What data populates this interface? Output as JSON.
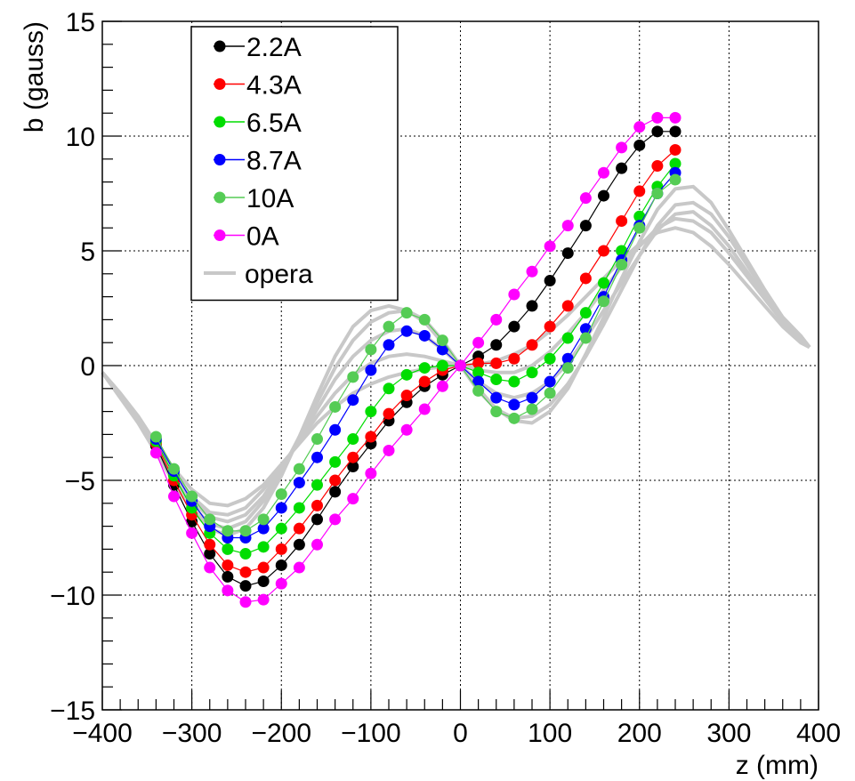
{
  "chart_data": {
    "type": "line",
    "xlabel": "z (mm)",
    "ylabel": "b (gauss)",
    "xlim": [
      -400,
      400
    ],
    "ylim": [
      -15,
      15
    ],
    "x_ticks": [
      -400,
      -300,
      -200,
      -100,
      0,
      100,
      200,
      300,
      400
    ],
    "x_tick_labels": [
      "−400",
      "−300",
      "−200",
      "−100",
      "0",
      "100",
      "200",
      "300",
      "400"
    ],
    "y_ticks": [
      -15,
      -10,
      -5,
      0,
      5,
      10,
      15
    ],
    "y_tick_labels": [
      "−15",
      "−10",
      "−5",
      "0",
      "5",
      "10",
      "15"
    ],
    "grid": true,
    "legend_position": "top-left",
    "x": [
      -340,
      -320,
      -300,
      -280,
      -260,
      -240,
      -220,
      -200,
      -180,
      -160,
      -140,
      -120,
      -100,
      -80,
      -60,
      -40,
      -20,
      0,
      20,
      40,
      60,
      80,
      100,
      120,
      140,
      160,
      180,
      200,
      220,
      240
    ],
    "series": [
      {
        "name": "2.2A",
        "color": "#000000",
        "marker": "circle",
        "values": [
          -3.5,
          -5.2,
          -6.8,
          -8.2,
          -9.2,
          -9.6,
          -9.4,
          -8.7,
          -7.8,
          -6.7,
          -5.5,
          -4.4,
          -3.4,
          -2.4,
          -1.6,
          -0.9,
          -0.4,
          0.0,
          0.4,
          0.9,
          1.7,
          2.6,
          3.7,
          4.9,
          6.1,
          7.4,
          8.6,
          9.6,
          10.2,
          10.2
        ]
      },
      {
        "name": "4.3A",
        "color": "#ff0000",
        "marker": "circle",
        "values": [
          -3.4,
          -5.0,
          -6.5,
          -7.8,
          -8.7,
          -9.0,
          -8.8,
          -8.0,
          -7.1,
          -6.1,
          -5.0,
          -4.0,
          -3.1,
          -2.1,
          -1.3,
          -0.7,
          -0.2,
          0.0,
          0.1,
          0.1,
          0.3,
          0.9,
          1.7,
          2.6,
          3.8,
          5.0,
          6.3,
          7.6,
          8.7,
          9.4
        ]
      },
      {
        "name": "6.5A",
        "color": "#00dd00",
        "marker": "circle",
        "values": [
          -3.3,
          -4.8,
          -6.2,
          -7.3,
          -8.0,
          -8.2,
          -7.9,
          -7.1,
          -6.2,
          -5.2,
          -4.2,
          -3.2,
          -2.0,
          -1.0,
          -0.4,
          -0.1,
          0.0,
          0.0,
          -0.3,
          -0.6,
          -0.7,
          -0.3,
          0.3,
          1.2,
          2.3,
          3.6,
          5.0,
          6.5,
          7.8,
          8.8
        ]
      },
      {
        "name": "8.7A",
        "color": "#0000ff",
        "marker": "circle",
        "values": [
          -3.2,
          -4.6,
          -5.9,
          -7.0,
          -7.5,
          -7.5,
          -7.1,
          -6.2,
          -5.1,
          -4.0,
          -2.8,
          -1.5,
          -0.2,
          0.9,
          1.5,
          1.3,
          0.7,
          0.0,
          -0.7,
          -1.4,
          -1.7,
          -1.4,
          -0.7,
          0.3,
          1.6,
          3.0,
          4.6,
          6.1,
          7.5,
          8.4
        ]
      },
      {
        "name": "10A",
        "color": "#55cc55",
        "marker": "circle",
        "values": [
          -3.1,
          -4.5,
          -5.7,
          -6.7,
          -7.2,
          -7.2,
          -6.7,
          -5.6,
          -4.5,
          -3.2,
          -1.8,
          -0.5,
          0.7,
          1.7,
          2.3,
          2.0,
          1.1,
          0.0,
          -1.1,
          -2.0,
          -2.3,
          -1.9,
          -1.2,
          -0.1,
          1.2,
          2.8,
          4.4,
          6.0,
          7.5,
          8.1
        ]
      },
      {
        "name": "0A",
        "color": "#ff00ff",
        "marker": "circle",
        "values": [
          -3.8,
          -5.7,
          -7.3,
          -8.8,
          -9.8,
          -10.3,
          -10.2,
          -9.5,
          -8.8,
          -7.8,
          -6.7,
          -5.8,
          -4.7,
          -3.7,
          -2.8,
          -1.9,
          -0.9,
          0.0,
          1.0,
          2.0,
          3.1,
          4.1,
          5.2,
          6.1,
          7.3,
          8.4,
          9.5,
          10.4,
          10.8,
          10.8
        ]
      }
    ],
    "opera": {
      "name": "opera",
      "color": "#c8c8c8",
      "x": [
        -400,
        -380,
        -360,
        -340,
        -320,
        -300,
        -280,
        -260,
        -240,
        -220,
        -200,
        -180,
        -160,
        -140,
        -120,
        -100,
        -80,
        -60,
        -40,
        -20,
        0,
        20,
        40,
        60,
        80,
        100,
        120,
        140,
        160,
        180,
        200,
        220,
        240,
        260,
        280,
        300,
        320,
        340,
        360,
        380,
        390
      ],
      "curves": [
        [
          -0.3,
          -1.2,
          -2.2,
          -3.4,
          -4.5,
          -5.4,
          -6.0,
          -6.1,
          -5.8,
          -5.2,
          -4.3,
          -3.4,
          -2.5,
          -1.8,
          -1.2,
          -0.8,
          -0.5,
          -0.3,
          -0.15,
          -0.05,
          0.0,
          0.05,
          0.2,
          0.5,
          0.9,
          1.5,
          2.2,
          3.0,
          3.8,
          4.6,
          5.3,
          5.8,
          6.0,
          5.8,
          5.2,
          4.4,
          3.5,
          2.6,
          1.7,
          1.0,
          0.8
        ],
        [
          -0.3,
          -1.2,
          -2.3,
          -3.5,
          -4.7,
          -5.7,
          -6.4,
          -6.5,
          -6.2,
          -5.4,
          -4.4,
          -3.3,
          -2.2,
          -1.2,
          -0.4,
          0.1,
          0.4,
          0.5,
          0.4,
          0.2,
          0.0,
          -0.2,
          -0.3,
          -0.3,
          0.0,
          0.6,
          1.4,
          2.3,
          3.3,
          4.3,
          5.2,
          6.0,
          6.4,
          6.3,
          5.8,
          4.9,
          3.9,
          2.9,
          1.9,
          1.1,
          0.8
        ],
        [
          -0.3,
          -1.3,
          -2.4,
          -3.6,
          -4.8,
          -5.9,
          -6.6,
          -6.8,
          -6.5,
          -5.7,
          -4.5,
          -3.2,
          -1.9,
          -0.6,
          0.4,
          1.1,
          1.5,
          1.6,
          1.3,
          0.7,
          0.0,
          -0.7,
          -1.2,
          -1.4,
          -1.2,
          -0.7,
          0.1,
          1.2,
          2.4,
          3.6,
          4.8,
          5.9,
          6.6,
          6.7,
          6.1,
          5.2,
          4.1,
          3.0,
          2.0,
          1.2,
          0.8
        ],
        [
          -0.3,
          -1.3,
          -2.4,
          -3.7,
          -5.0,
          -6.1,
          -6.9,
          -7.1,
          -6.8,
          -5.9,
          -4.6,
          -3.1,
          -1.6,
          -0.1,
          1.1,
          1.9,
          2.3,
          2.4,
          2.0,
          1.1,
          0.0,
          -1.1,
          -1.9,
          -2.3,
          -2.2,
          -1.7,
          -0.8,
          0.4,
          1.8,
          3.3,
          4.8,
          6.1,
          7.0,
          7.1,
          6.6,
          5.6,
          4.4,
          3.2,
          2.1,
          1.3,
          0.8
        ],
        [
          -0.3,
          -1.4,
          -2.5,
          -3.8,
          -5.1,
          -6.3,
          -7.1,
          -7.4,
          -7.1,
          -6.2,
          -4.8,
          -3.1,
          -1.3,
          0.4,
          1.7,
          2.4,
          2.6,
          2.4,
          1.9,
          1.0,
          0.0,
          -1.0,
          -1.9,
          -2.4,
          -2.5,
          -2.0,
          -1.0,
          0.5,
          2.1,
          3.8,
          5.4,
          6.8,
          7.7,
          7.8,
          7.1,
          5.9,
          4.6,
          3.3,
          2.1,
          1.3,
          0.8
        ]
      ]
    }
  }
}
